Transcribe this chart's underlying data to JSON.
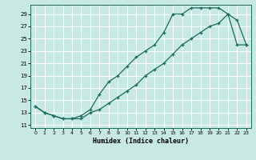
{
  "xlabel": "Humidex (Indice chaleur)",
  "ylabel": "",
  "bg_color": "#c8e8e4",
  "line_color": "#1a6b5e",
  "grid_color": "#b0d4d0",
  "xlim": [
    -0.5,
    23.5
  ],
  "ylim": [
    10.5,
    30.5
  ],
  "xticks": [
    0,
    1,
    2,
    3,
    4,
    5,
    6,
    7,
    8,
    9,
    10,
    11,
    12,
    13,
    14,
    15,
    16,
    17,
    18,
    19,
    20,
    21,
    22,
    23
  ],
  "yticks": [
    11,
    13,
    15,
    17,
    19,
    21,
    23,
    25,
    27,
    29
  ],
  "curve1_x": [
    0,
    1,
    2,
    3,
    4,
    5,
    6,
    7,
    8,
    9,
    10,
    11,
    12,
    13,
    14,
    15,
    16,
    17,
    18,
    19,
    20,
    21,
    22,
    23
  ],
  "curve1_y": [
    14,
    13,
    12.5,
    12,
    12,
    12.5,
    13.5,
    16,
    18,
    19,
    20.5,
    22,
    23,
    24,
    26,
    29,
    29,
    30,
    30,
    30,
    30,
    29,
    28,
    24
  ],
  "curve2_x": [
    0,
    1,
    2,
    3,
    4,
    5,
    6,
    7,
    8,
    9,
    10,
    11,
    12,
    13,
    14,
    15,
    16,
    17,
    18,
    19,
    20,
    21,
    22,
    23
  ],
  "curve2_y": [
    14,
    13,
    12.5,
    12,
    12,
    12,
    13,
    13.5,
    14.5,
    15.5,
    16.5,
    17.5,
    19,
    20,
    21,
    22.5,
    24,
    25,
    26,
    27,
    27.5,
    29,
    24,
    24
  ],
  "marker": "+",
  "markersize": 3,
  "linewidth": 0.9
}
